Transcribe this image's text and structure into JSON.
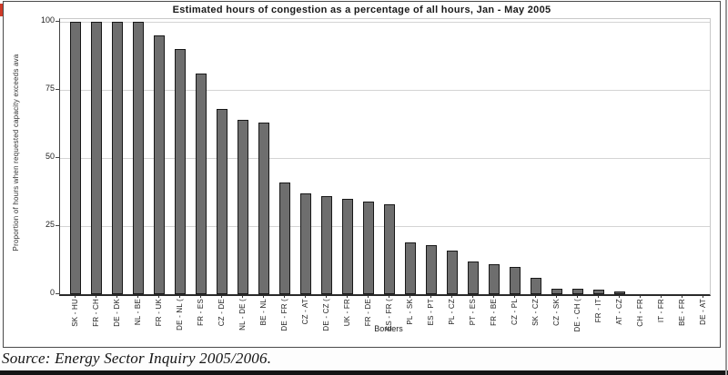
{
  "chart_data": {
    "type": "bar",
    "title": "Estimated hours of congestion as a percentage of all hours, Jan - May 2005",
    "ylabel": "Proportion of hours when requested capacity exceeds ava",
    "xlabel": "Borders",
    "ylim": [
      0,
      100
    ],
    "yticks": [
      0,
      25,
      50,
      75,
      100
    ],
    "grid": true,
    "legend": "none",
    "bar_color": "#6e6e6e",
    "categories": [
      "SK - HU",
      "FR - CH",
      "DE - DK",
      "NL - BE",
      "FR - UK",
      "DE - NL (",
      "FR - ES",
      "CZ - DE",
      "NL - DE (",
      "BE - NL",
      "DE - FR (",
      "CZ - AT",
      "DE - CZ (",
      "UK - FR",
      "FR - DE",
      "ES - FR (",
      "PL - SK",
      "ES - PT",
      "PL - CZ",
      "PT - ES",
      "FR - BE",
      "CZ - PL",
      "SK - CZ",
      "CZ - SK",
      "DE - CH (",
      "FR - IT",
      "AT - CZ",
      "CH - FR",
      "IT - FR",
      "BE - FR",
      "DE - AT"
    ],
    "values": [
      100,
      100,
      100,
      100,
      95,
      90,
      81,
      68,
      64,
      63,
      41,
      37,
      36,
      35,
      34,
      33,
      19,
      18,
      16,
      12,
      11,
      10,
      6,
      2,
      2,
      1.5,
      1,
      0,
      0,
      0,
      0
    ]
  },
  "source_note": "Source: Energy Sector Inquiry 2005/2006."
}
